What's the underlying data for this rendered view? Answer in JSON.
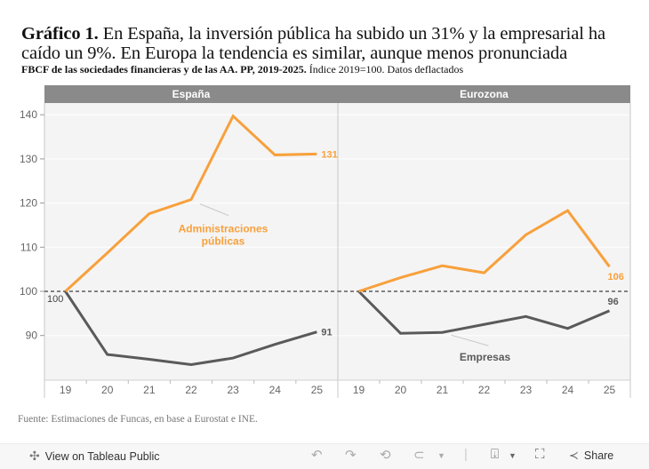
{
  "title": {
    "bold": "Gráfico 1.",
    "text": " En España, la inversión pública ha subido un 31% y la empresarial ha caído un 9%. En Europa la tendencia es similar, aunque menos pronunciada"
  },
  "subtitle": {
    "bold": "FBCF de las sociedades financieras y de las AA. PP, 2019-2025.",
    "text": " Índice 2019=100. Datos deflactados"
  },
  "source": "Fuente: Estimaciones de Funcas, en base a Eurostat e INE.",
  "colors": {
    "admin": "#f8a03c",
    "empresas": "#5a5a5a",
    "header_bg": "#8a8a8a",
    "pane_bg": "#f4f4f4"
  },
  "chart_data": [
    {
      "type": "line",
      "panel": "España",
      "categories": [
        "19",
        "20",
        "21",
        "22",
        "23",
        "24",
        "25"
      ],
      "series": [
        {
          "name": "Administraciones públicas",
          "values": [
            100,
            108.7,
            117.6,
            120.8,
            139.7,
            130.9,
            131.1
          ],
          "end_label": "131",
          "start_label": "100"
        },
        {
          "name": "Empresas",
          "values": [
            100,
            85.7,
            84.6,
            83.4,
            84.9,
            88.0,
            90.8
          ],
          "end_label": "91"
        }
      ],
      "annotation": {
        "text": [
          "Administraciones",
          "públicas"
        ],
        "series": "Administraciones públicas",
        "anchor_category": "22"
      },
      "ylim": [
        80,
        146
      ],
      "yticks": [
        90,
        100,
        110,
        120,
        130,
        140
      ],
      "reference_line": 100
    },
    {
      "type": "line",
      "panel": "Eurozona",
      "categories": [
        "19",
        "20",
        "21",
        "22",
        "23",
        "24",
        "25"
      ],
      "series": [
        {
          "name": "Administraciones públicas",
          "values": [
            100,
            103.1,
            105.8,
            104.2,
            112.8,
            118.3,
            105.6
          ],
          "end_label": "106"
        },
        {
          "name": "Empresas",
          "values": [
            100,
            90.5,
            90.7,
            92.5,
            94.3,
            91.6,
            95.6
          ],
          "end_label": "96"
        }
      ],
      "annotation": {
        "text": [
          "Empresas"
        ],
        "series": "Empresas",
        "anchor_category": "21"
      },
      "ylim": [
        80,
        146
      ],
      "yticks": [
        90,
        100,
        110,
        120,
        130,
        140
      ],
      "reference_line": 100
    }
  ],
  "toolbar": {
    "view_label": "View on Tableau Public",
    "share_label": "Share"
  }
}
